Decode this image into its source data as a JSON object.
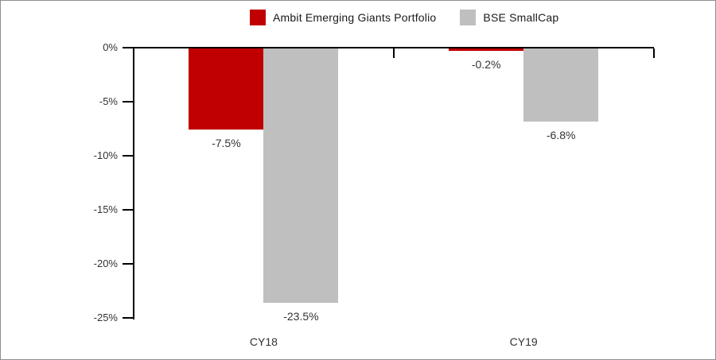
{
  "chart_data": {
    "type": "bar",
    "title": "",
    "xlabel": "",
    "ylabel": "",
    "categories": [
      "CY18",
      "CY19"
    ],
    "series": [
      {
        "name": "Ambit Emerging Giants Portfolio",
        "color": "#c00000",
        "values": [
          -7.5,
          -0.2
        ],
        "data_labels": [
          "-7.5%",
          "-0.2%"
        ]
      },
      {
        "name": "BSE SmallCap",
        "color": "#bfbfbf",
        "values": [
          -23.5,
          -6.8
        ],
        "data_labels": [
          "-23.5%",
          "-6.8%"
        ]
      }
    ],
    "ylim": [
      -25,
      0
    ],
    "yticks": {
      "values": [
        0,
        -5,
        -10,
        -15,
        -20,
        -25
      ],
      "labels": [
        "0%",
        "-5%",
        "-10%",
        "-15%",
        "-20%",
        "-25%"
      ]
    },
    "grid": false,
    "legend_position": "top-center",
    "axis_color": "#000000"
  }
}
